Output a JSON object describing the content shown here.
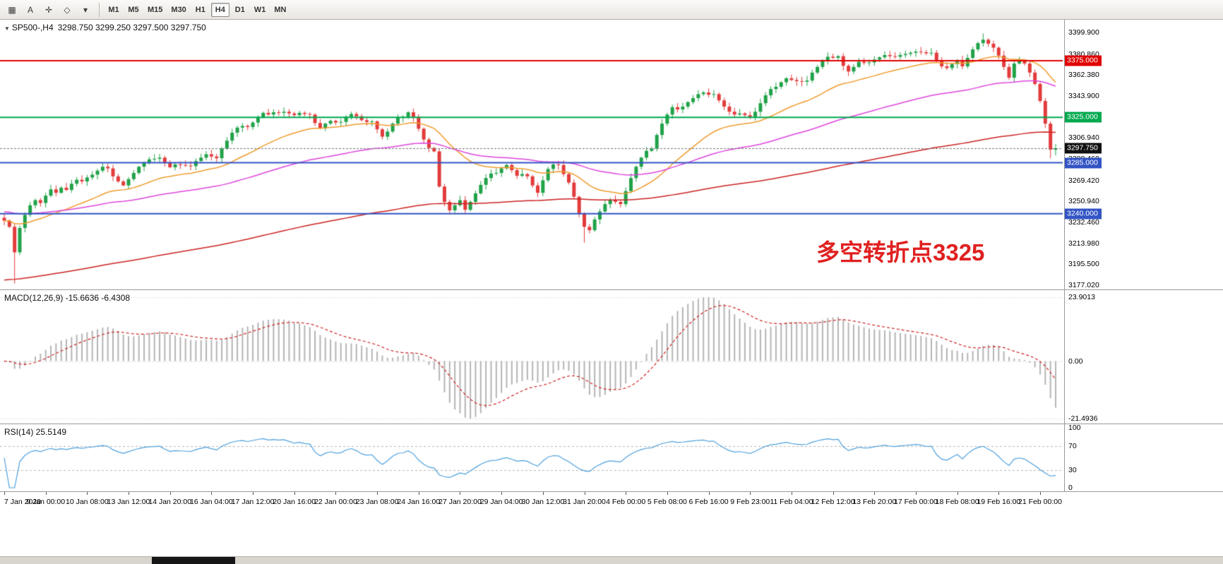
{
  "toolbar": {
    "tools": [
      {
        "name": "chart-mode-icon",
        "glyph": "▦"
      },
      {
        "name": "text-tool-icon",
        "glyph": "A"
      },
      {
        "name": "crosshair-tool-icon",
        "glyph": "✛"
      },
      {
        "name": "shapes-tool-icon",
        "glyph": "◇"
      },
      {
        "name": "arrow-dropdown-icon",
        "glyph": "▾"
      }
    ],
    "timeframes": [
      {
        "label": "M1"
      },
      {
        "label": "M5"
      },
      {
        "label": "M15"
      },
      {
        "label": "M30"
      },
      {
        "label": "H1"
      },
      {
        "label": "H4",
        "active": true
      },
      {
        "label": "D1"
      },
      {
        "label": "W1"
      },
      {
        "label": "MN"
      }
    ]
  },
  "chart": {
    "symbol_period": "SP500-,H4",
    "quote": "3298.750 3299.250 3297.500 3297.750",
    "annotation": "多空转折点3325",
    "annotation_color": "#e02020",
    "current_price": 3297.75,
    "current_price_label": "3297.750",
    "axis_labels": [
      "3399.900",
      "3380.860",
      "3362.380",
      "3343.900",
      "3325.420",
      "3306.940",
      "3288.460",
      "3269.420",
      "3250.940",
      "3232.460",
      "3213.980",
      "3195.500",
      "3177.020"
    ],
    "hlines": [
      {
        "value": 3375.0,
        "label": "3375.000",
        "color": "#e00000"
      },
      {
        "value": 3325.0,
        "label": "3325.000",
        "color": "#00a94f"
      },
      {
        "value": 3285.0,
        "label": "3285.000",
        "color": "#3254c5"
      },
      {
        "value": 3240.0,
        "label": "3240.000",
        "color": "#3254c5"
      }
    ]
  },
  "macd": {
    "label": "MACD(12,26,9) -15.6636 -6.4308",
    "axis": [
      "23.9013",
      "0.00",
      "-21.4936"
    ],
    "histogram_color": "#b4b4b4",
    "signal_color": "#cc2020"
  },
  "rsi": {
    "label": "RSI(14) 25.5149",
    "axis": [
      "100",
      "70",
      "30",
      "0"
    ],
    "levels": [
      70,
      30
    ],
    "line_color": "#4c9fdc"
  },
  "time_axis": [
    "7 Jan 2020",
    "9 Jan 00:00",
    "10 Jan 08:00",
    "13 Jan 12:00",
    "14 Jan 20:00",
    "16 Jan 04:00",
    "17 Jan 12:00",
    "20 Jan 16:00",
    "22 Jan 00:00",
    "23 Jan 08:00",
    "24 Jan 16:00",
    "27 Jan 20:00",
    "29 Jan 04:00",
    "30 Jan 12:00",
    "31 Jan 20:00",
    "4 Feb 00:00",
    "5 Feb 08:00",
    "6 Feb 16:00",
    "9 Feb 23:00",
    "11 Feb 04:00",
    "12 Feb 12:00",
    "13 Feb 20:00",
    "17 Feb 00:00",
    "18 Feb 08:00",
    "19 Feb 16:00",
    "21 Feb 00:00"
  ],
  "chart_data": {
    "type": "candlestick",
    "symbol": "SP500-",
    "timeframe": "H4",
    "ylim": [
      3177.02,
      3399.9
    ],
    "candle_up_color": "#21a249",
    "candle_down_color": "#e23b3b",
    "closes": [
      3234.0,
      3228.5,
      3206.0,
      3227.5,
      3239.0,
      3247.5,
      3252.0,
      3249.5,
      3256.0,
      3261.5,
      3258.5,
      3263.0,
      3261.0,
      3266.5,
      3270.0,
      3268.5,
      3272.0,
      3274.5,
      3278.0,
      3281.5,
      3280.0,
      3273.0,
      3268.5,
      3265.0,
      3270.5,
      3276.0,
      3281.5,
      3285.0,
      3288.0,
      3288.5,
      3289.5,
      3285.0,
      3281.0,
      3283.5,
      3283.0,
      3282.5,
      3282.0,
      3286.5,
      3289.5,
      3292.5,
      3290.5,
      3289.0,
      3297.5,
      3304.5,
      3311.5,
      3316.0,
      3317.5,
      3316.5,
      3320.5,
      3325.0,
      3329.0,
      3327.5,
      3329.5,
      3329.0,
      3330.0,
      3328.5,
      3327.0,
      3329.0,
      3328.0,
      3327.5,
      3320.0,
      3315.5,
      3319.5,
      3322.0,
      3320.5,
      3321.0,
      3325.5,
      3328.0,
      3326.0,
      3322.5,
      3321.0,
      3321.5,
      3314.5,
      3308.0,
      3312.5,
      3319.5,
      3324.5,
      3325.5,
      3329.5,
      3325.5,
      3315.0,
      3305.5,
      3298.0,
      3295.0,
      3264.0,
      3250.5,
      3243.0,
      3247.5,
      3252.0,
      3243.5,
      3250.5,
      3258.0,
      3265.5,
      3271.5,
      3275.5,
      3276.0,
      3280.0,
      3283.0,
      3278.5,
      3273.5,
      3275.0,
      3273.0,
      3265.0,
      3258.5,
      3269.5,
      3279.5,
      3283.5,
      3283.0,
      3275.0,
      3267.5,
      3255.0,
      3240.5,
      3228.5,
      3225.5,
      3235.0,
      3242.0,
      3248.5,
      3252.0,
      3250.5,
      3248.5,
      3260.0,
      3271.5,
      3281.5,
      3289.5,
      3295.5,
      3297.5,
      3309.5,
      3319.5,
      3327.5,
      3334.0,
      3332.0,
      3334.5,
      3338.5,
      3342.0,
      3345.5,
      3347.0,
      3345.0,
      3345.5,
      3340.0,
      3334.5,
      3330.0,
      3327.5,
      3328.5,
      3327.0,
      3325.5,
      3330.0,
      3337.5,
      3344.5,
      3350.0,
      3352.0,
      3356.0,
      3359.5,
      3358.0,
      3357.0,
      3356.5,
      3357.5,
      3364.5,
      3369.5,
      3374.5,
      3378.5,
      3377.5,
      3379.0,
      3370.5,
      3365.5,
      3369.5,
      3374.0,
      3373.0,
      3373.5,
      3376.0,
      3378.0,
      3380.0,
      3379.0,
      3378.5,
      3380.0,
      3381.0,
      3382.0,
      3383.0,
      3382.5,
      3381.5,
      3382.0,
      3375.0,
      3370.0,
      3368.5,
      3372.0,
      3375.5,
      3370.0,
      3377.5,
      3385.0,
      3390.5,
      3393.5,
      3390.0,
      3386.5,
      3379.5,
      3369.5,
      3360.0,
      3372.5,
      3375.0,
      3372.5,
      3364.5,
      3354.5,
      3339.5,
      3319.5,
      3296.5,
      3297.8
    ],
    "overrides": [
      {
        "index": 2,
        "low": 3178.5
      },
      {
        "index": 112,
        "low": 3214.5
      },
      {
        "index": 189,
        "high": 3399.0
      },
      {
        "index": 202,
        "low": 3289.0
      },
      {
        "index": 203,
        "low": 3291.5
      }
    ],
    "moving_averages": [
      {
        "name": "fast-ma",
        "period": 24,
        "color": "#ef9b2d",
        "init": null
      },
      {
        "name": "medium-ma",
        "period": 72,
        "color": "#dd44dd",
        "init": 3242
      },
      {
        "name": "slow-ma",
        "period": 200,
        "color": "#cc2222",
        "init": 3181
      }
    ],
    "macd_params": {
      "fast": 12,
      "slow": 26,
      "signal": 9
    },
    "rsi_period": 14
  }
}
